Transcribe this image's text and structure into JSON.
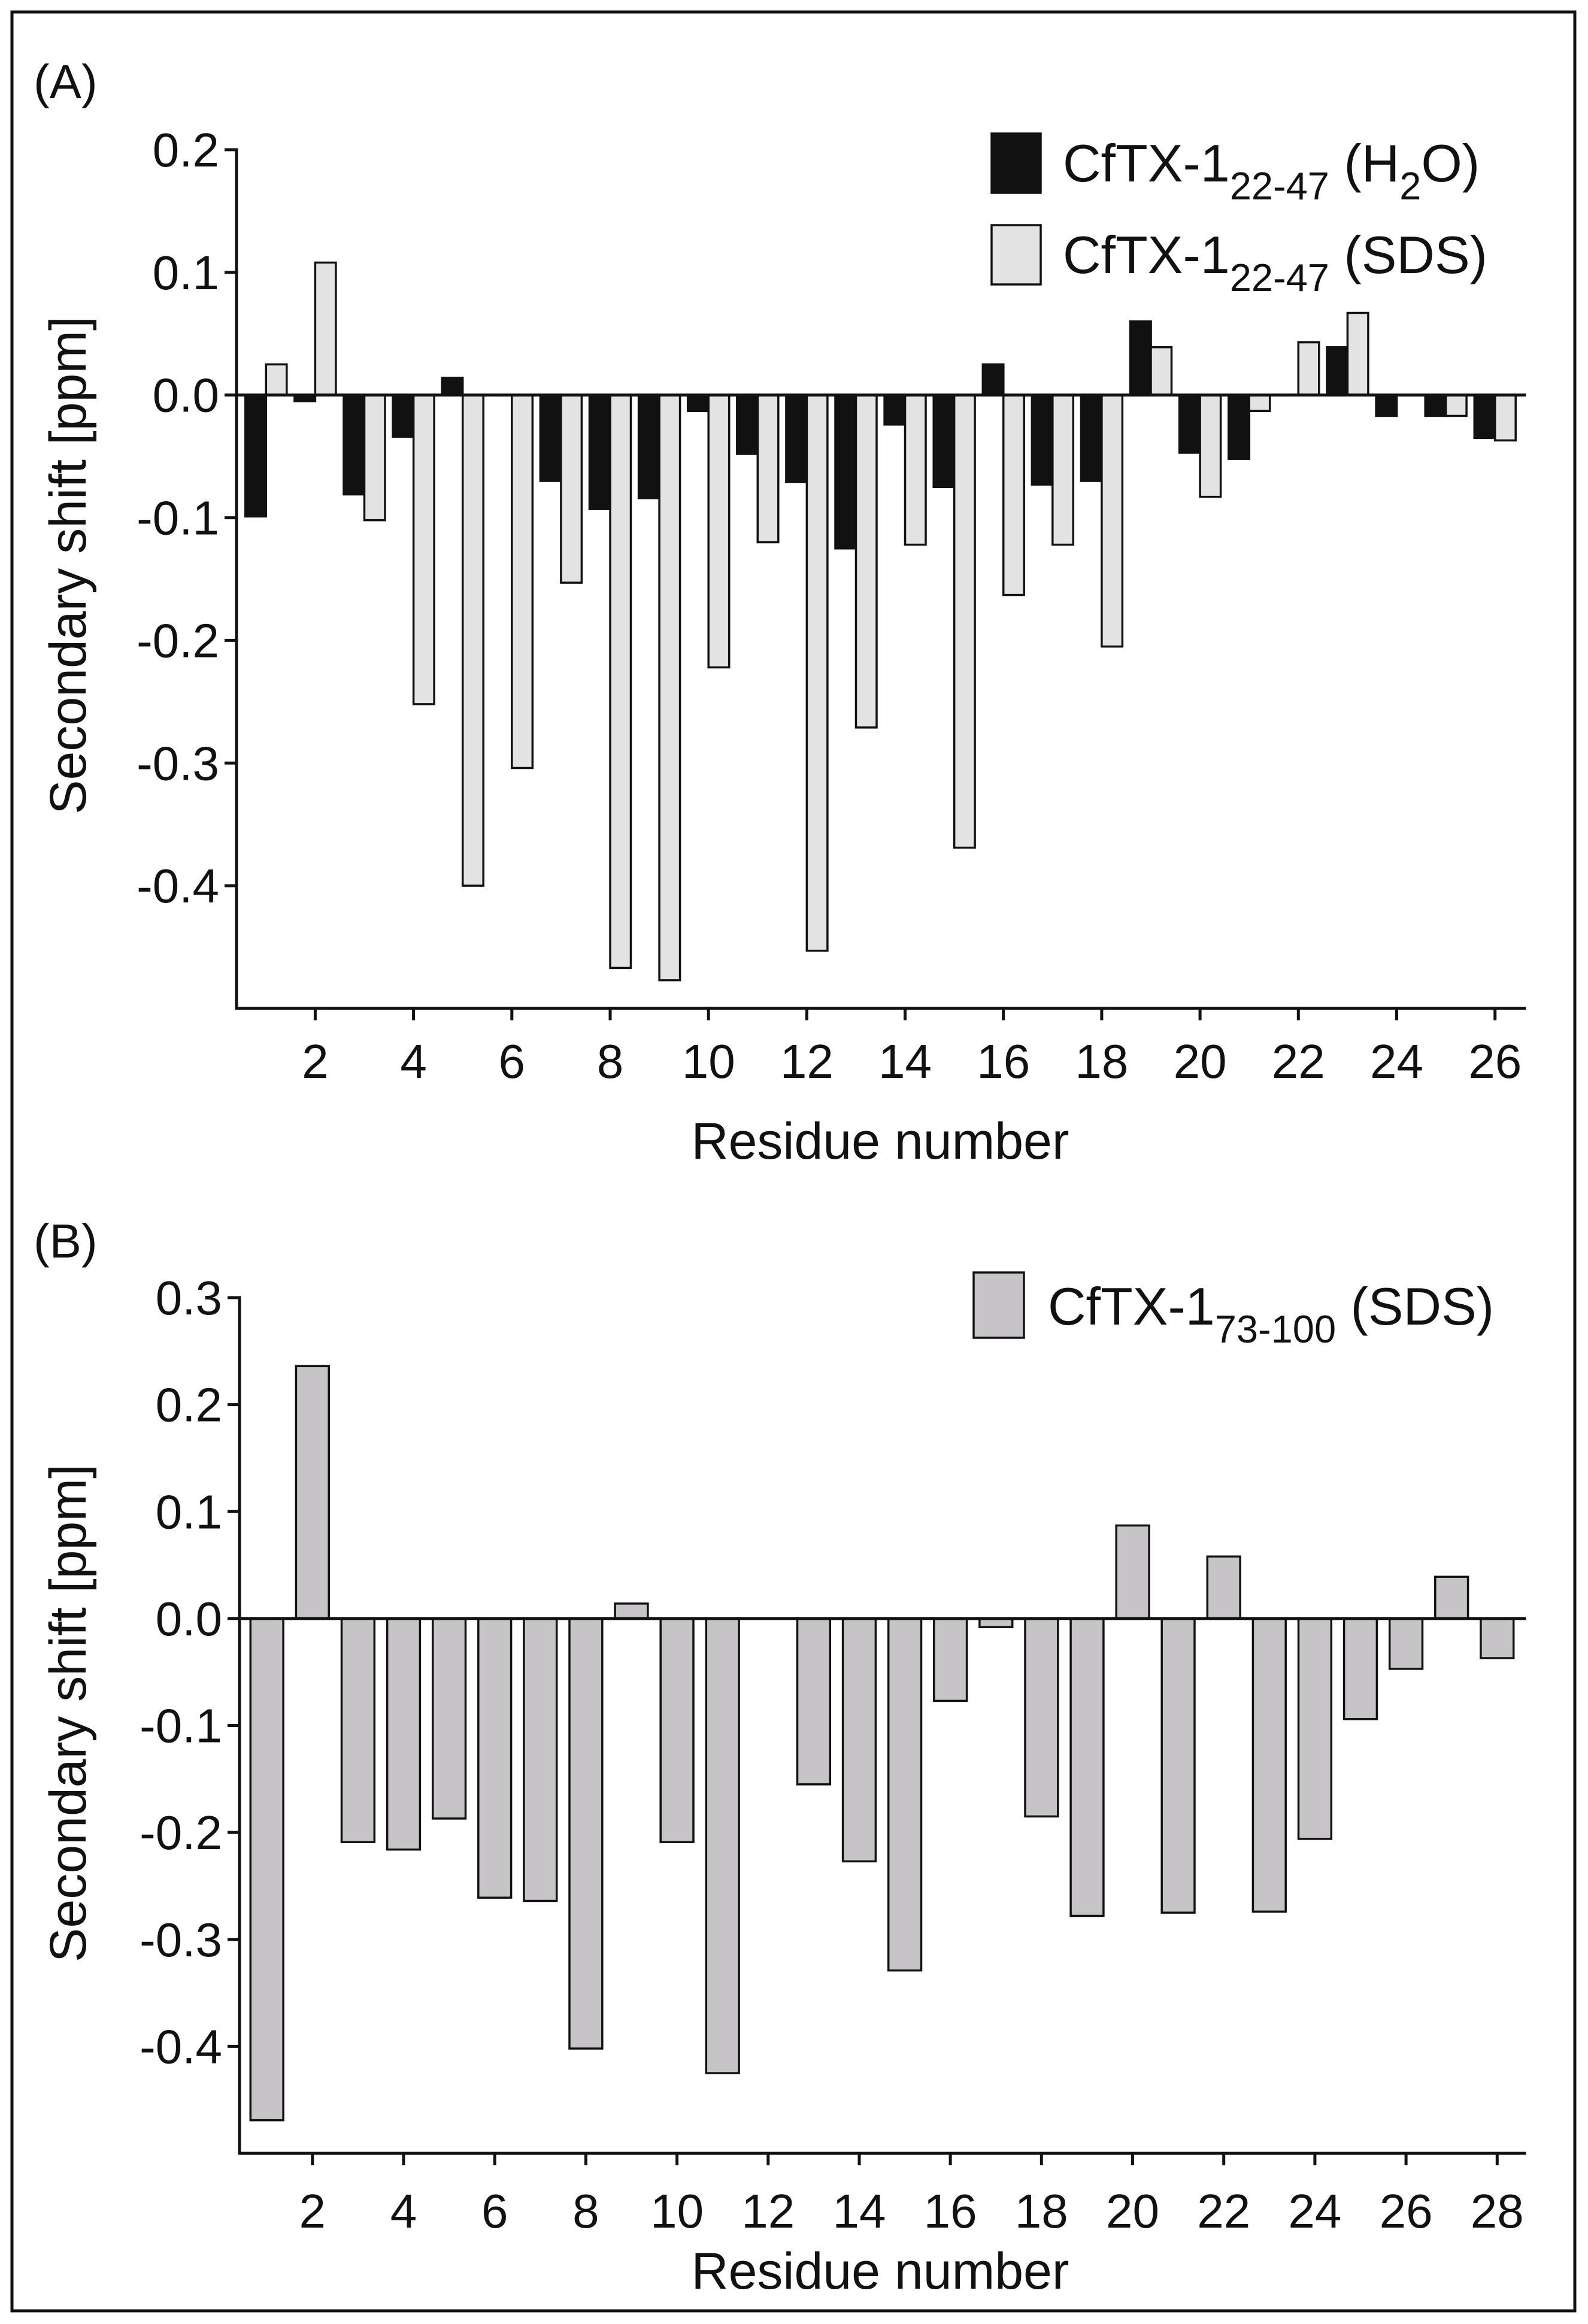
{
  "chart_data": [
    {
      "panel_label": "(A)",
      "type": "bar",
      "xlabel": "Residue number",
      "ylabel": "Secondary shift [ppm]",
      "x": [
        1,
        2,
        3,
        4,
        5,
        6,
        7,
        8,
        9,
        10,
        11,
        12,
        13,
        14,
        15,
        16,
        17,
        18,
        19,
        20,
        21,
        22,
        23,
        24,
        25,
        26
      ],
      "xlim": [
        0.4,
        26.6
      ],
      "ylim": [
        -0.5,
        0.2
      ],
      "xticks": [
        2,
        4,
        6,
        8,
        10,
        12,
        14,
        16,
        18,
        20,
        22,
        24,
        26
      ],
      "yticks": [
        "0.2",
        "0.1",
        "0.0",
        "-0.1",
        "-0.2",
        "-0.3",
        "-0.4"
      ],
      "grid": false,
      "legend_position": "top-right",
      "series": [
        {
          "name_parts": [
            {
              "text": "CfTX-1"
            },
            {
              "text": "22-47",
              "sub": true
            },
            {
              "text": " (H"
            },
            {
              "text": "2",
              "sub": true
            },
            {
              "text": "O)"
            }
          ],
          "color": "#111111",
          "values": [
            -0.099,
            -0.005,
            -0.081,
            -0.034,
            0.014,
            null,
            -0.07,
            -0.093,
            -0.084,
            -0.013,
            -0.048,
            -0.071,
            -0.125,
            -0.024,
            -0.075,
            0.025,
            -0.073,
            -0.07,
            0.06,
            -0.047,
            -0.052,
            null,
            0.039,
            -0.017,
            -0.017,
            -0.035
          ]
        },
        {
          "name_parts": [
            {
              "text": "CfTX-1"
            },
            {
              "text": "22-47",
              "sub": true
            },
            {
              "text": " (SDS)"
            }
          ],
          "color": "#e3e3e3",
          "values": [
            0.025,
            0.108,
            -0.102,
            -0.252,
            -0.4,
            -0.304,
            -0.153,
            -0.467,
            -0.477,
            -0.222,
            -0.12,
            -0.453,
            -0.271,
            -0.122,
            -0.369,
            -0.163,
            -0.122,
            -0.205,
            0.039,
            -0.083,
            -0.013,
            0.043,
            0.067,
            null,
            -0.017,
            -0.037
          ]
        }
      ]
    },
    {
      "panel_label": "(B)",
      "type": "bar",
      "xlabel": "Residue number",
      "ylabel": "Secondary shift [ppm]",
      "x": [
        1,
        2,
        3,
        4,
        5,
        6,
        7,
        8,
        9,
        10,
        11,
        12,
        13,
        14,
        15,
        16,
        17,
        18,
        19,
        20,
        21,
        22,
        23,
        24,
        25,
        26,
        27,
        28
      ],
      "xlim": [
        0.4,
        28.6
      ],
      "ylim": [
        -0.5,
        0.3
      ],
      "xticks": [
        2,
        4,
        6,
        8,
        10,
        12,
        14,
        16,
        18,
        20,
        22,
        24,
        26,
        28
      ],
      "yticks": [
        "0.3",
        "0.2",
        "0.1",
        "0.0",
        "-0.1",
        "-0.2",
        "-0.3",
        "-0.4"
      ],
      "grid": false,
      "legend_position": "top-right",
      "series": [
        {
          "name_parts": [
            {
              "text": "CfTX-1"
            },
            {
              "text": "73-100",
              "sub": true
            },
            {
              "text": " (SDS)"
            }
          ],
          "color": "#c7c4c7",
          "values": [
            -0.469,
            0.236,
            -0.209,
            -0.216,
            -0.187,
            -0.261,
            -0.264,
            -0.402,
            0.014,
            -0.209,
            -0.425,
            null,
            -0.155,
            -0.227,
            -0.329,
            -0.077,
            -0.008,
            -0.185,
            -0.278,
            0.087,
            -0.275,
            0.058,
            -0.274,
            -0.206,
            -0.094,
            -0.047,
            0.039,
            -0.037
          ]
        }
      ]
    }
  ]
}
